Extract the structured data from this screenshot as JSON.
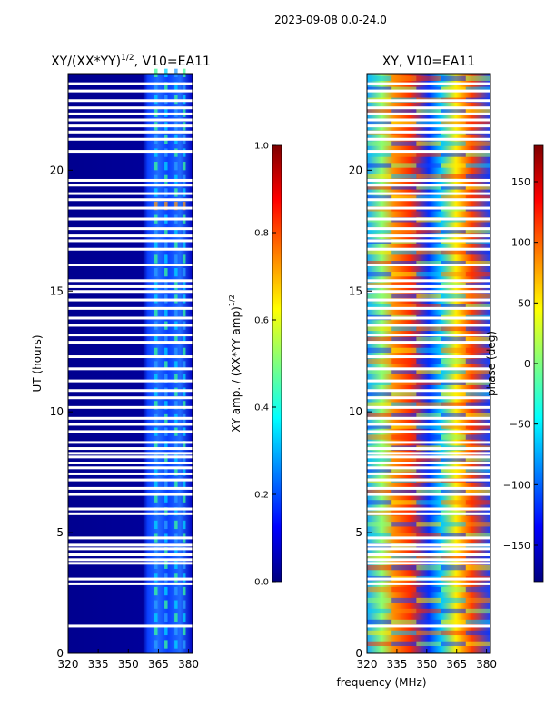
{
  "figure_title": "2023-09-08 0.0-24.0",
  "chart_data": [
    {
      "type": "heatmap",
      "title": "XY/(XX*YY)",
      "title_superscript": "1/2",
      "title_suffix": ", V10=EA11",
      "xlabel": "",
      "ylabel": "UT (hours)",
      "xlim": [
        320,
        382
      ],
      "ylim": [
        0,
        24
      ],
      "xticks": [
        320,
        335,
        350,
        365,
        380
      ],
      "yticks": [
        0,
        5,
        10,
        15,
        20
      ],
      "flagged_ut_hours": [
        1.15,
        2.9,
        3.1,
        3.75,
        3.9,
        4.1,
        4.35,
        4.5,
        4.8,
        5.8,
        6.0,
        6.6,
        6.85,
        7.2,
        7.45,
        7.7,
        7.9,
        8.15,
        8.3,
        8.5,
        8.75,
        9.2,
        9.5,
        9.75,
        10.2,
        10.6,
        10.9,
        11.3,
        11.8,
        12.3,
        12.9,
        13.2,
        13.6,
        13.9,
        14.3,
        14.65,
        15.0,
        15.2,
        15.45,
        16.1,
        16.75,
        17.1,
        17.3,
        17.6,
        18.0,
        18.45,
        18.8,
        19.05,
        19.4,
        19.6,
        20.8,
        21.3,
        21.6,
        21.85,
        22.1,
        22.35,
        22.6,
        22.9,
        23.3,
        23.6
      ],
      "colorbar": {
        "label": "XY amp. / (XX*YY amp)",
        "label_superscript": "1/2",
        "range": [
          0.0,
          1.0
        ],
        "ticks": [
          "0.0",
          "0.2",
          "0.4",
          "0.6",
          "0.8",
          "1.0"
        ]
      }
    },
    {
      "type": "heatmap",
      "title": "XY, V10=EA11",
      "xlabel": "frequency (MHz)",
      "ylabel": "",
      "xlim": [
        320,
        382
      ],
      "ylim": [
        0,
        24
      ],
      "xticks": [
        320,
        335,
        350,
        365,
        380
      ],
      "yticks": [
        0,
        5,
        10,
        15,
        20
      ],
      "colorbar": {
        "label": "phase (deg)",
        "range": [
          -180,
          180
        ],
        "ticks": [
          "150",
          "100",
          "50",
          "0",
          "−50",
          "−100",
          "−150"
        ]
      }
    }
  ]
}
